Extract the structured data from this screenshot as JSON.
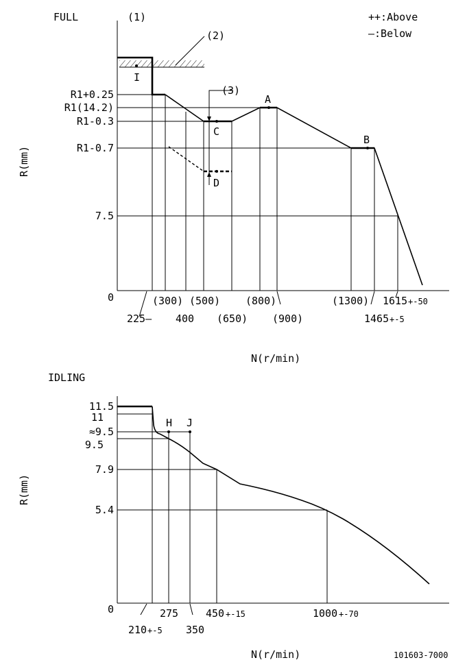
{
  "full": {
    "title": "FULL",
    "note1": "(1)",
    "note2": "(2)",
    "note3": "(3)",
    "legend_above": "++:Above",
    "legend_below": "—:Below",
    "y_axis_label": "R(mm)",
    "x_axis_label": "N(r/min)",
    "y_ticks": [
      "R1+0.25",
      "R1(14.2)",
      "R1-0.3",
      "R1-0.7",
      "7.5",
      "0"
    ],
    "points": {
      "I": "I",
      "A": "A",
      "B": "B",
      "C": "C",
      "D": "D"
    },
    "x_ticks": {
      "t225": "225—",
      "t300": "(300)",
      "t400": "400",
      "t500": "(500)",
      "t650": "(650)",
      "t800": "(800)",
      "t900": "(900)",
      "t1300": "(1300)",
      "t1465_main": "1465",
      "t1465_tol": "+-5",
      "t1615_main": "1615",
      "t1615_tol": "+-50"
    }
  },
  "idling": {
    "title": "IDLING",
    "y_axis_label": "R(mm)",
    "x_axis_label": "N(r/min)",
    "y_ticks": [
      "11.5",
      "11",
      "≈9.5",
      "9.5",
      "7.9",
      "5.4",
      "0"
    ],
    "points": {
      "H": "H",
      "J": "J"
    },
    "x_ticks": {
      "t210_main": "210",
      "t210_tol": "+-5",
      "t275": "275",
      "t350": "350",
      "t450_main": "450",
      "t450_tol": "+-15",
      "t1000_main": "1000",
      "t1000_tol": "+-70"
    }
  },
  "footer": {
    "code": "101603-7000"
  }
}
